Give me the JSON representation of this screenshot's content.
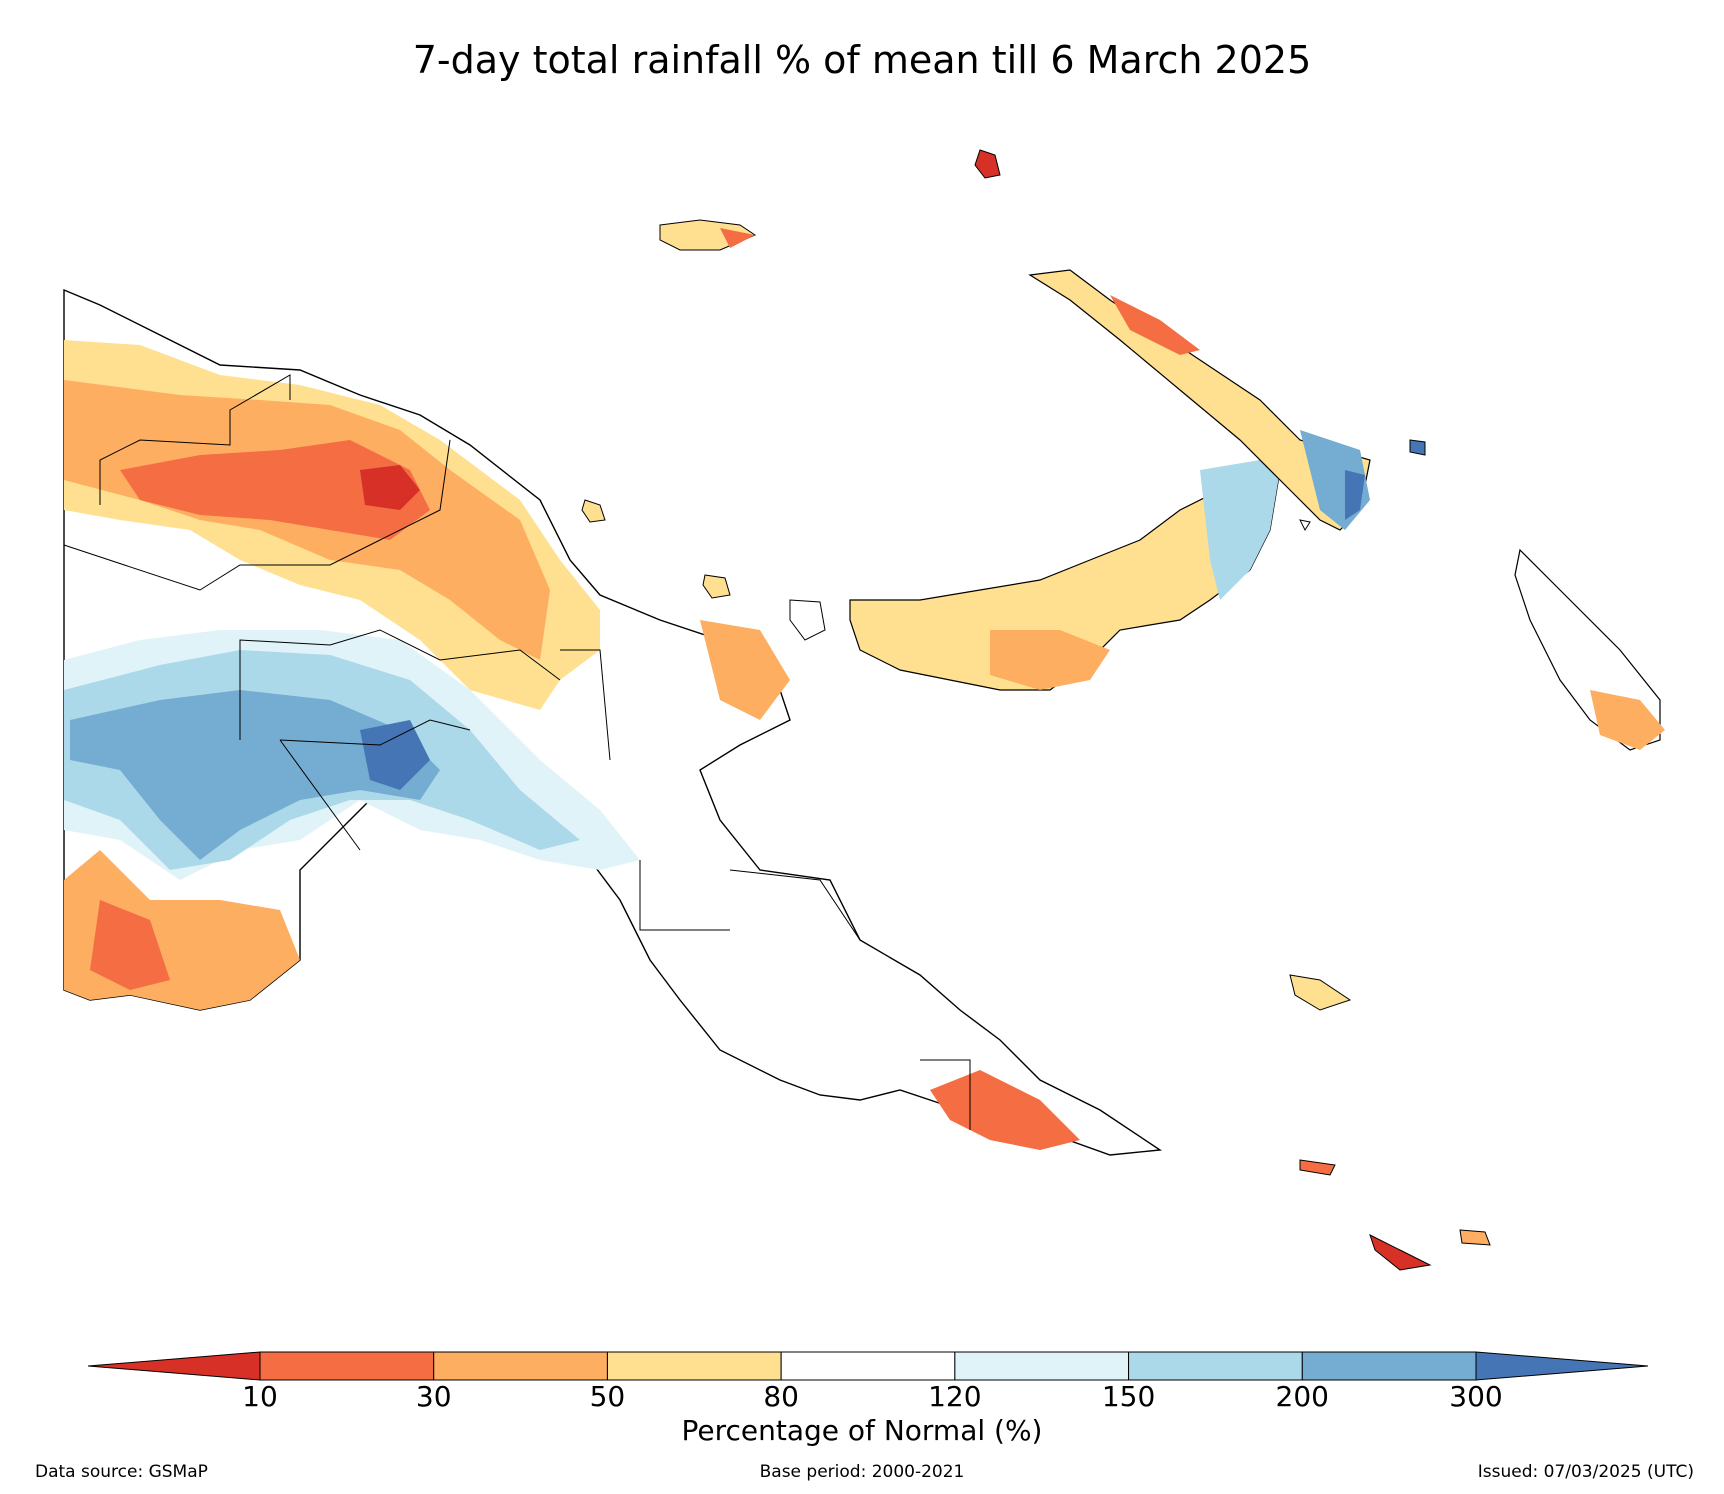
{
  "title": "7-day total rainfall % of mean till 6 March 2025",
  "colorbar": {
    "label": "Percentage of Normal (%)",
    "ticks": [
      "10",
      "30",
      "50",
      "80",
      "120",
      "150",
      "200",
      "300"
    ],
    "colors": [
      "#d73027",
      "#f46d43",
      "#fdae61",
      "#fee090",
      "#ffffff",
      "#e0f3f8",
      "#abd9e9",
      "#74add1",
      "#4575b4"
    ]
  },
  "footer": {
    "source": "Data source: GSMaP",
    "base_period": "Base period: 2000-2021",
    "issued": "Issued: 07/03/2025 (UTC)"
  }
}
